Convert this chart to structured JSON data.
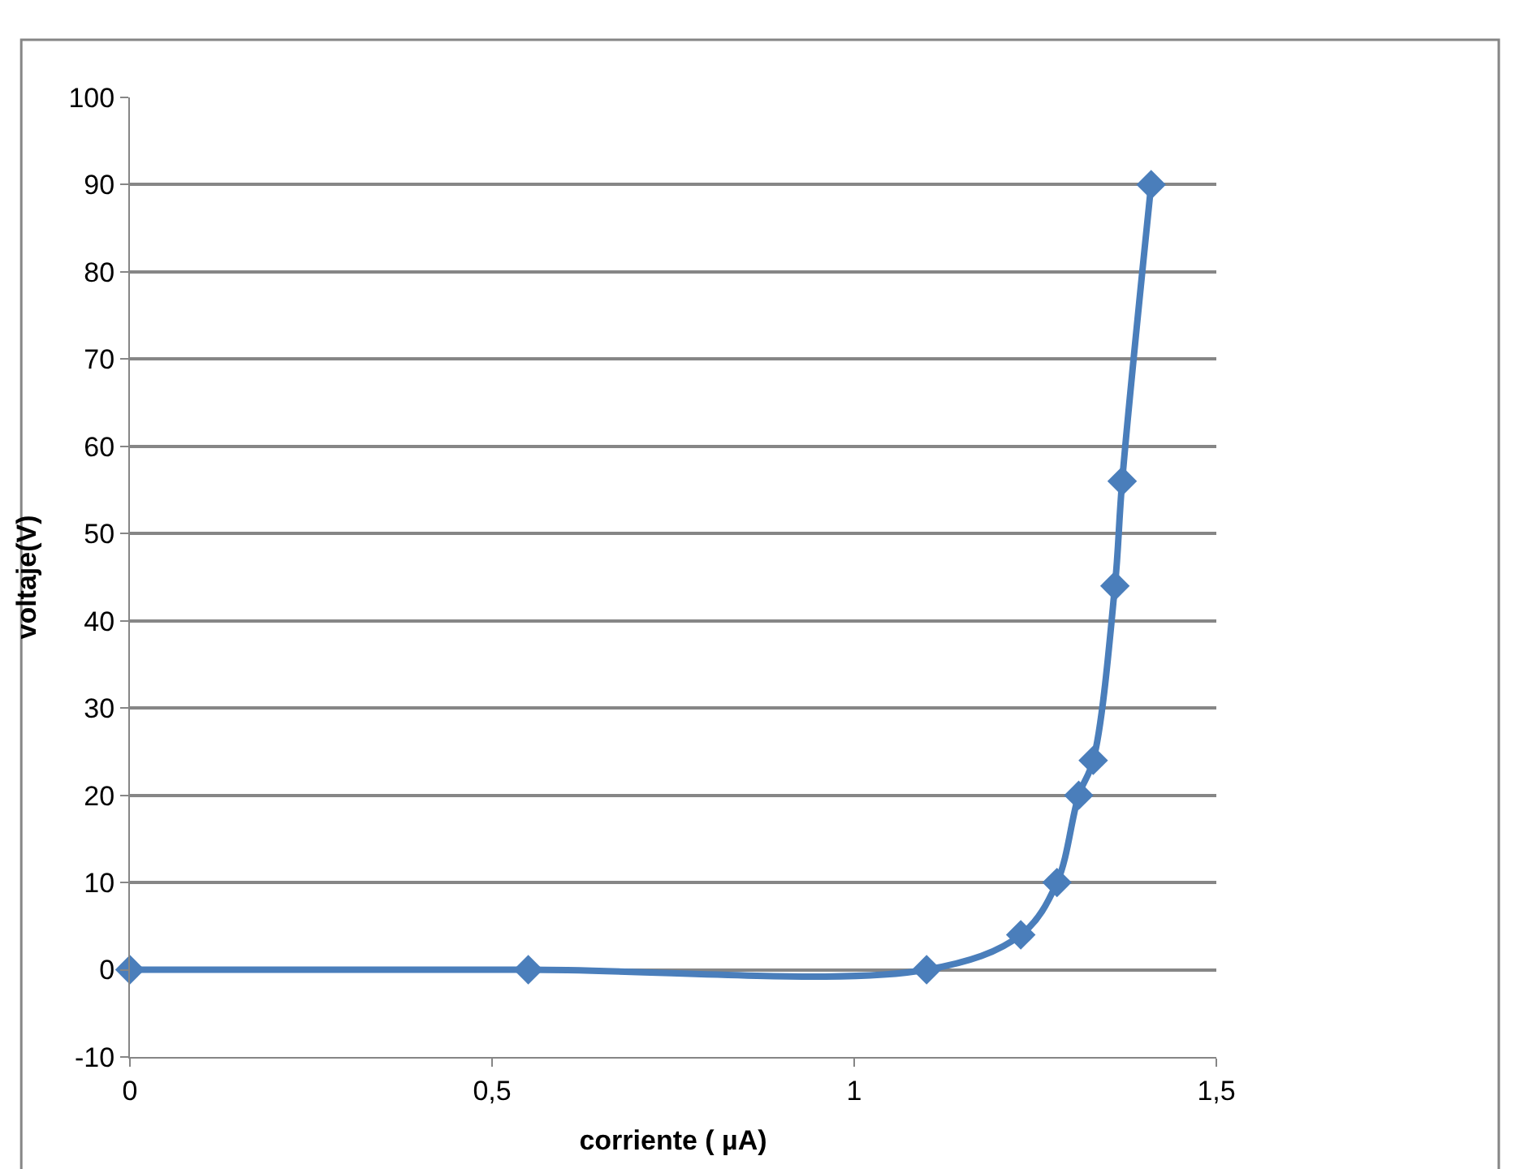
{
  "chart_data": {
    "type": "line",
    "xlabel": "corriente ( µA)",
    "ylabel": "voltaje(V)",
    "x": [
      0,
      0.55,
      1.1,
      1.23,
      1.28,
      1.31,
      1.33,
      1.36,
      1.37,
      1.41
    ],
    "series": [
      {
        "color": "#4a7ebb",
        "values": [
          0,
          0,
          0,
          4,
          10,
          20,
          24,
          44,
          56,
          90
        ]
      }
    ],
    "xlim": [
      0,
      1.5
    ],
    "xticks": [
      0,
      {
        "value": 0.5,
        "label": "0,5"
      },
      1,
      {
        "value": 1.5,
        "label": "1,5"
      }
    ],
    "ylim": [
      -10,
      100
    ],
    "yticks": [
      -10,
      0,
      10,
      20,
      30,
      40,
      50,
      60,
      70,
      80,
      90,
      100
    ],
    "grid": "y",
    "legend": false,
    "marker": "diamond",
    "line_style": "solid"
  }
}
